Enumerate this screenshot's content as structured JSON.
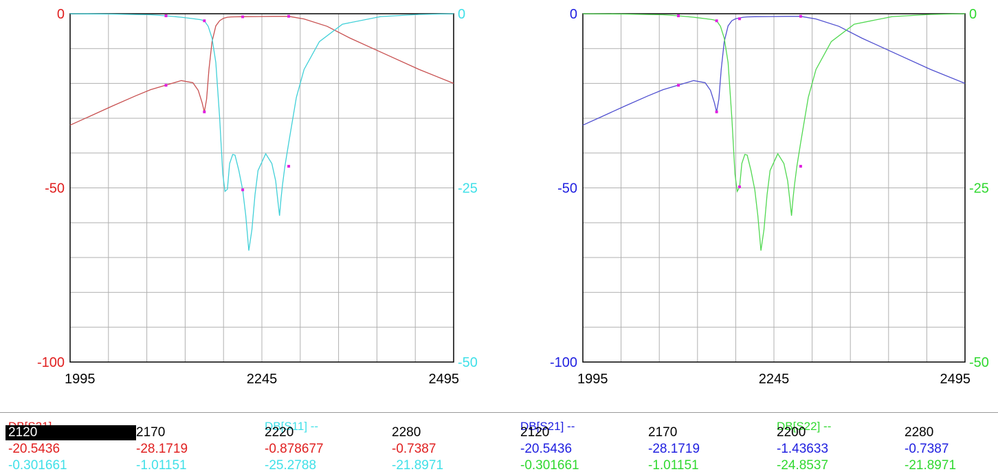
{
  "colors": {
    "red": "#e02020",
    "cyan": "#40e0e8",
    "blue": "#2020e0",
    "green": "#30d830",
    "redTrace": "#c85050",
    "cyanTrace": "#40d0d8",
    "blueTrace": "#5050d0",
    "greenTrace": "#50d850",
    "marker": "#e020e0",
    "grid": "#b0b0b0"
  },
  "chart_data": [
    {
      "type": "line",
      "title": "",
      "xlabel": "",
      "ylabel": "",
      "x_ticks": [
        "1995",
        "2245",
        "2495"
      ],
      "xlim": [
        1995,
        2495
      ],
      "ylim_left": [
        -100,
        0
      ],
      "ylim_right": [
        -50,
        0
      ],
      "left_ticks": [
        "0",
        "-50",
        "-100"
      ],
      "right_ticks": [
        "0",
        "-25",
        "-50"
      ],
      "left_color": "#e02020",
      "right_color": "#40e0e8",
      "grid": true,
      "series": [
        {
          "axis": "left",
          "color": "#c85050",
          "x": [
            1995,
            2020,
            2050,
            2080,
            2100,
            2120,
            2140,
            2155,
            2162,
            2167,
            2170,
            2173,
            2176,
            2180,
            2185,
            2190,
            2195,
            2200,
            2205,
            2210,
            2220,
            2240,
            2260,
            2280,
            2300,
            2330,
            2360,
            2400,
            2450,
            2495
          ],
          "y": [
            -32,
            -29.5,
            -26.5,
            -23.6,
            -21.8,
            -20.5,
            -19.2,
            -19.8,
            -22,
            -25.5,
            -28.2,
            -24.5,
            -16,
            -8,
            -3.5,
            -2,
            -1.3,
            -1,
            -0.9,
            -0.88,
            -0.85,
            -0.8,
            -0.75,
            -0.74,
            -1.5,
            -3.6,
            -7,
            -11,
            -16,
            -20
          ]
        },
        {
          "axis": "right",
          "color": "#40d0d8",
          "x": [
            1995,
            2050,
            2100,
            2120,
            2140,
            2155,
            2165,
            2170,
            2175,
            2180,
            2185,
            2190,
            2194,
            2197,
            2200,
            2203,
            2207,
            2210,
            2215,
            2220,
            2224,
            2228,
            2232,
            2236,
            2240,
            2250,
            2258,
            2263,
            2266,
            2268,
            2270,
            2272,
            2275,
            2280,
            2290,
            2300,
            2320,
            2350,
            2400,
            2450,
            2495
          ],
          "y": [
            0,
            -0.05,
            -0.15,
            -0.3,
            -0.5,
            -0.7,
            -0.85,
            -1.01,
            -1.8,
            -3.5,
            -7,
            -15,
            -23,
            -25.5,
            -25.2,
            -21.5,
            -20.2,
            -20.3,
            -22.5,
            -25.3,
            -29,
            -34,
            -31,
            -26,
            -22.5,
            -20.1,
            -21.5,
            -24,
            -27,
            -29,
            -26.5,
            -24.5,
            -21.9,
            -18.5,
            -12,
            -8,
            -4,
            -1.5,
            -0.4,
            -0.1,
            0
          ]
        }
      ],
      "markers": [
        {
          "x": 2120,
          "y": -20.5436,
          "axis": "left"
        },
        {
          "x": 2170,
          "y": -28.1719,
          "axis": "left"
        },
        {
          "x": 2220,
          "y": -0.878677,
          "axis": "left"
        },
        {
          "x": 2280,
          "y": -0.7387,
          "axis": "left"
        },
        {
          "x": 2120,
          "y": -0.301661,
          "axis": "right"
        },
        {
          "x": 2170,
          "y": -1.01151,
          "axis": "right"
        },
        {
          "x": 2220,
          "y": -25.2788,
          "axis": "right"
        },
        {
          "x": 2280,
          "y": -21.8971,
          "axis": "right"
        }
      ]
    },
    {
      "type": "line",
      "title": "",
      "xlabel": "",
      "ylabel": "",
      "x_ticks": [
        "1995",
        "2245",
        "2495"
      ],
      "xlim": [
        1995,
        2495
      ],
      "ylim_left": [
        -100,
        0
      ],
      "ylim_right": [
        -50,
        0
      ],
      "left_ticks": [
        "0",
        "-50",
        "-100"
      ],
      "right_ticks": [
        "0",
        "-25",
        "-50"
      ],
      "left_color": "#2020e0",
      "right_color": "#30d830",
      "grid": true,
      "series": [
        {
          "axis": "left",
          "color": "#5050d0",
          "x": [
            1995,
            2020,
            2050,
            2080,
            2100,
            2120,
            2140,
            2155,
            2162,
            2167,
            2170,
            2173,
            2176,
            2180,
            2185,
            2190,
            2195,
            2200,
            2205,
            2210,
            2220,
            2240,
            2260,
            2280,
            2300,
            2330,
            2360,
            2400,
            2450,
            2495
          ],
          "y": [
            -32,
            -29.5,
            -26.5,
            -23.6,
            -21.8,
            -20.5,
            -19.2,
            -19.8,
            -22,
            -25.5,
            -28.2,
            -24.5,
            -16,
            -8,
            -3.5,
            -2,
            -1.44,
            -1.2,
            -1,
            -0.9,
            -0.85,
            -0.8,
            -0.75,
            -0.74,
            -1.5,
            -3.6,
            -7,
            -11,
            -16,
            -20
          ]
        },
        {
          "axis": "right",
          "color": "#50d850",
          "x": [
            1995,
            2050,
            2100,
            2120,
            2140,
            2155,
            2165,
            2170,
            2175,
            2180,
            2185,
            2190,
            2194,
            2197,
            2200,
            2203,
            2207,
            2210,
            2215,
            2220,
            2224,
            2228,
            2232,
            2236,
            2240,
            2250,
            2258,
            2263,
            2266,
            2268,
            2270,
            2272,
            2275,
            2280,
            2290,
            2300,
            2320,
            2350,
            2400,
            2450,
            2495
          ],
          "y": [
            0,
            -0.05,
            -0.15,
            -0.3,
            -0.5,
            -0.7,
            -0.85,
            -1.01,
            -1.8,
            -3.5,
            -7,
            -15,
            -23,
            -25.5,
            -24.9,
            -21.5,
            -20.2,
            -20.3,
            -22.5,
            -25.3,
            -29,
            -34,
            -31,
            -26,
            -22.5,
            -20.1,
            -21.5,
            -24,
            -27,
            -29,
            -26.5,
            -24.5,
            -21.9,
            -18.5,
            -12,
            -8,
            -4,
            -1.5,
            -0.4,
            -0.1,
            0
          ]
        }
      ],
      "markers": [
        {
          "x": 2120,
          "y": -20.5436,
          "axis": "left"
        },
        {
          "x": 2170,
          "y": -28.1719,
          "axis": "left"
        },
        {
          "x": 2200,
          "y": -1.43633,
          "axis": "left"
        },
        {
          "x": 2280,
          "y": -0.7387,
          "axis": "left"
        },
        {
          "x": 2120,
          "y": -0.301661,
          "axis": "right"
        },
        {
          "x": 2170,
          "y": -1.01151,
          "axis": "right"
        },
        {
          "x": 2200,
          "y": -24.8537,
          "axis": "right"
        },
        {
          "x": 2280,
          "y": -21.8971,
          "axis": "right"
        }
      ]
    }
  ],
  "marker_table": {
    "legends": [
      {
        "text": "DB[S21] --",
        "color": "#e02020"
      },
      {
        "text": "DB[S11] --",
        "color": "#40e0e8"
      },
      {
        "text": "DB[S21] --",
        "color": "#2020e0"
      },
      {
        "text": "DB[S22] --",
        "color": "#30d830"
      }
    ],
    "freq_row": [
      "2120",
      "2170",
      "2220",
      "2280",
      "2120",
      "2170",
      "2200",
      "2280"
    ],
    "s21_row": [
      "-20.5436",
      "-28.1719",
      "-0.878677",
      "-0.7387",
      "-20.5436",
      "-28.1719",
      "-1.43633",
      "-0.7387"
    ],
    "refl_row": [
      "-0.301661",
      "-1.01151",
      "-25.2788",
      "-21.8971",
      "-0.301661",
      "-1.01151",
      "-24.8537",
      "-21.8971"
    ]
  }
}
